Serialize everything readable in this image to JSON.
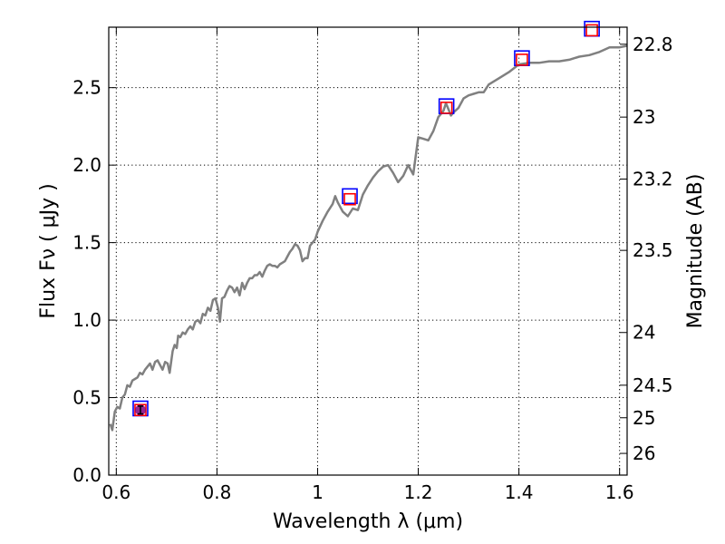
{
  "chart_data": {
    "type": "line",
    "xlabel": "Wavelength  λ (μm)",
    "ylabel": "Flux  Fν  ( μJy )",
    "ylabel_right": "Magnitude (AB)",
    "xlim": [
      0.585,
      1.615
    ],
    "ylim": [
      0.0,
      2.89
    ],
    "grid": true,
    "x_ticks": [
      {
        "value": 0.6,
        "label": "0.6"
      },
      {
        "value": 0.8,
        "label": "0.8"
      },
      {
        "value": 1.0,
        "label": "1"
      },
      {
        "value": 1.2,
        "label": "1.2"
      },
      {
        "value": 1.4,
        "label": "1.4"
      },
      {
        "value": 1.6,
        "label": "1.6"
      }
    ],
    "y_ticks": [
      {
        "value": 0.0,
        "label": "0.0"
      },
      {
        "value": 0.5,
        "label": "0.5"
      },
      {
        "value": 1.0,
        "label": "1.0"
      },
      {
        "value": 1.5,
        "label": "1.5"
      },
      {
        "value": 2.0,
        "label": "2.0"
      },
      {
        "value": 2.5,
        "label": "2.5"
      }
    ],
    "magnitude_ticks": [
      {
        "flux": 2.78,
        "label": "22.8"
      },
      {
        "flux": 2.31,
        "label": "23"
      },
      {
        "flux": 1.91,
        "label": "23.2"
      },
      {
        "flux": 1.45,
        "label": "23.5"
      },
      {
        "flux": 0.92,
        "label": "24"
      },
      {
        "flux": 0.58,
        "label": "24.5"
      },
      {
        "flux": 0.37,
        "label": "25"
      },
      {
        "flux": 0.14,
        "label": "26"
      }
    ],
    "series": [
      {
        "kind": "line",
        "color": "#808080",
        "points": [
          [
            0.588,
            0.33
          ],
          [
            0.592,
            0.29
          ],
          [
            0.597,
            0.41
          ],
          [
            0.602,
            0.44
          ],
          [
            0.607,
            0.43
          ],
          [
            0.612,
            0.5
          ],
          [
            0.617,
            0.52
          ],
          [
            0.622,
            0.58
          ],
          [
            0.627,
            0.57
          ],
          [
            0.632,
            0.61
          ],
          [
            0.637,
            0.62
          ],
          [
            0.642,
            0.63
          ],
          [
            0.647,
            0.66
          ],
          [
            0.652,
            0.65
          ],
          [
            0.657,
            0.68
          ],
          [
            0.662,
            0.7
          ],
          [
            0.667,
            0.72
          ],
          [
            0.672,
            0.68
          ],
          [
            0.677,
            0.73
          ],
          [
            0.682,
            0.74
          ],
          [
            0.687,
            0.71
          ],
          [
            0.692,
            0.68
          ],
          [
            0.697,
            0.73
          ],
          [
            0.702,
            0.72
          ],
          [
            0.706,
            0.66
          ],
          [
            0.712,
            0.8
          ],
          [
            0.716,
            0.84
          ],
          [
            0.72,
            0.82
          ],
          [
            0.723,
            0.9
          ],
          [
            0.727,
            0.89
          ],
          [
            0.732,
            0.92
          ],
          [
            0.737,
            0.91
          ],
          [
            0.742,
            0.94
          ],
          [
            0.747,
            0.96
          ],
          [
            0.752,
            0.94
          ],
          [
            0.757,
            0.99
          ],
          [
            0.762,
            1.0
          ],
          [
            0.767,
            0.98
          ],
          [
            0.772,
            1.04
          ],
          [
            0.777,
            1.03
          ],
          [
            0.782,
            1.08
          ],
          [
            0.787,
            1.06
          ],
          [
            0.792,
            1.13
          ],
          [
            0.797,
            1.14
          ],
          [
            0.802,
            1.08
          ],
          [
            0.806,
            0.99
          ],
          [
            0.81,
            1.14
          ],
          [
            0.815,
            1.15
          ],
          [
            0.82,
            1.19
          ],
          [
            0.825,
            1.22
          ],
          [
            0.83,
            1.21
          ],
          [
            0.835,
            1.18
          ],
          [
            0.84,
            1.21
          ],
          [
            0.845,
            1.16
          ],
          [
            0.85,
            1.24
          ],
          [
            0.855,
            1.2
          ],
          [
            0.86,
            1.24
          ],
          [
            0.865,
            1.27
          ],
          [
            0.87,
            1.27
          ],
          [
            0.875,
            1.29
          ],
          [
            0.88,
            1.29
          ],
          [
            0.885,
            1.31
          ],
          [
            0.89,
            1.28
          ],
          [
            0.895,
            1.32
          ],
          [
            0.9,
            1.35
          ],
          [
            0.905,
            1.36
          ],
          [
            0.91,
            1.35
          ],
          [
            0.915,
            1.35
          ],
          [
            0.92,
            1.34
          ],
          [
            0.925,
            1.36
          ],
          [
            0.93,
            1.37
          ],
          [
            0.935,
            1.38
          ],
          [
            0.94,
            1.41
          ],
          [
            0.945,
            1.44
          ],
          [
            0.95,
            1.46
          ],
          [
            0.955,
            1.49
          ],
          [
            0.96,
            1.48
          ],
          [
            0.965,
            1.45
          ],
          [
            0.97,
            1.38
          ],
          [
            0.975,
            1.4
          ],
          [
            0.98,
            1.4
          ],
          [
            0.985,
            1.48
          ],
          [
            0.99,
            1.5
          ],
          [
            0.995,
            1.52
          ],
          [
            1.0,
            1.57
          ],
          [
            1.01,
            1.64
          ],
          [
            1.02,
            1.7
          ],
          [
            1.03,
            1.75
          ],
          [
            1.035,
            1.8
          ],
          [
            1.04,
            1.76
          ],
          [
            1.05,
            1.7
          ],
          [
            1.06,
            1.67
          ],
          [
            1.07,
            1.72
          ],
          [
            1.08,
            1.71
          ],
          [
            1.09,
            1.81
          ],
          [
            1.1,
            1.87
          ],
          [
            1.11,
            1.92
          ],
          [
            1.12,
            1.96
          ],
          [
            1.13,
            1.99
          ],
          [
            1.14,
            2.0
          ],
          [
            1.15,
            1.95
          ],
          [
            1.16,
            1.89
          ],
          [
            1.17,
            1.93
          ],
          [
            1.18,
            2.0
          ],
          [
            1.19,
            1.94
          ],
          [
            1.2,
            2.18
          ],
          [
            1.21,
            2.17
          ],
          [
            1.22,
            2.16
          ],
          [
            1.23,
            2.22
          ],
          [
            1.24,
            2.31
          ],
          [
            1.25,
            2.35
          ],
          [
            1.255,
            2.4
          ],
          [
            1.26,
            2.36
          ],
          [
            1.265,
            2.32
          ],
          [
            1.27,
            2.34
          ],
          [
            1.28,
            2.37
          ],
          [
            1.29,
            2.43
          ],
          [
            1.3,
            2.45
          ],
          [
            1.31,
            2.46
          ],
          [
            1.32,
            2.47
          ],
          [
            1.33,
            2.47
          ],
          [
            1.34,
            2.52
          ],
          [
            1.36,
            2.56
          ],
          [
            1.38,
            2.6
          ],
          [
            1.4,
            2.65
          ],
          [
            1.42,
            2.66
          ],
          [
            1.44,
            2.66
          ],
          [
            1.46,
            2.67
          ],
          [
            1.48,
            2.67
          ],
          [
            1.5,
            2.68
          ],
          [
            1.52,
            2.7
          ],
          [
            1.54,
            2.71
          ],
          [
            1.56,
            2.73
          ],
          [
            1.58,
            2.76
          ],
          [
            1.6,
            2.76
          ],
          [
            1.615,
            2.77
          ]
        ]
      },
      {
        "kind": "square-markers",
        "color": "#0000ff",
        "points": [
          [
            0.648,
            0.43
          ],
          [
            1.064,
            1.8
          ],
          [
            1.256,
            2.38
          ],
          [
            1.406,
            2.69
          ],
          [
            1.545,
            2.88
          ]
        ]
      },
      {
        "kind": "square-markers",
        "color": "#ff0000",
        "points": [
          [
            0.648,
            0.42
          ],
          [
            1.064,
            1.78
          ],
          [
            1.256,
            2.37
          ],
          [
            1.406,
            2.68
          ],
          [
            1.545,
            2.87
          ]
        ]
      },
      {
        "kind": "errorbar-point",
        "color": "#800080",
        "points": [
          [
            0.648,
            0.42,
            0.025
          ]
        ]
      }
    ]
  }
}
